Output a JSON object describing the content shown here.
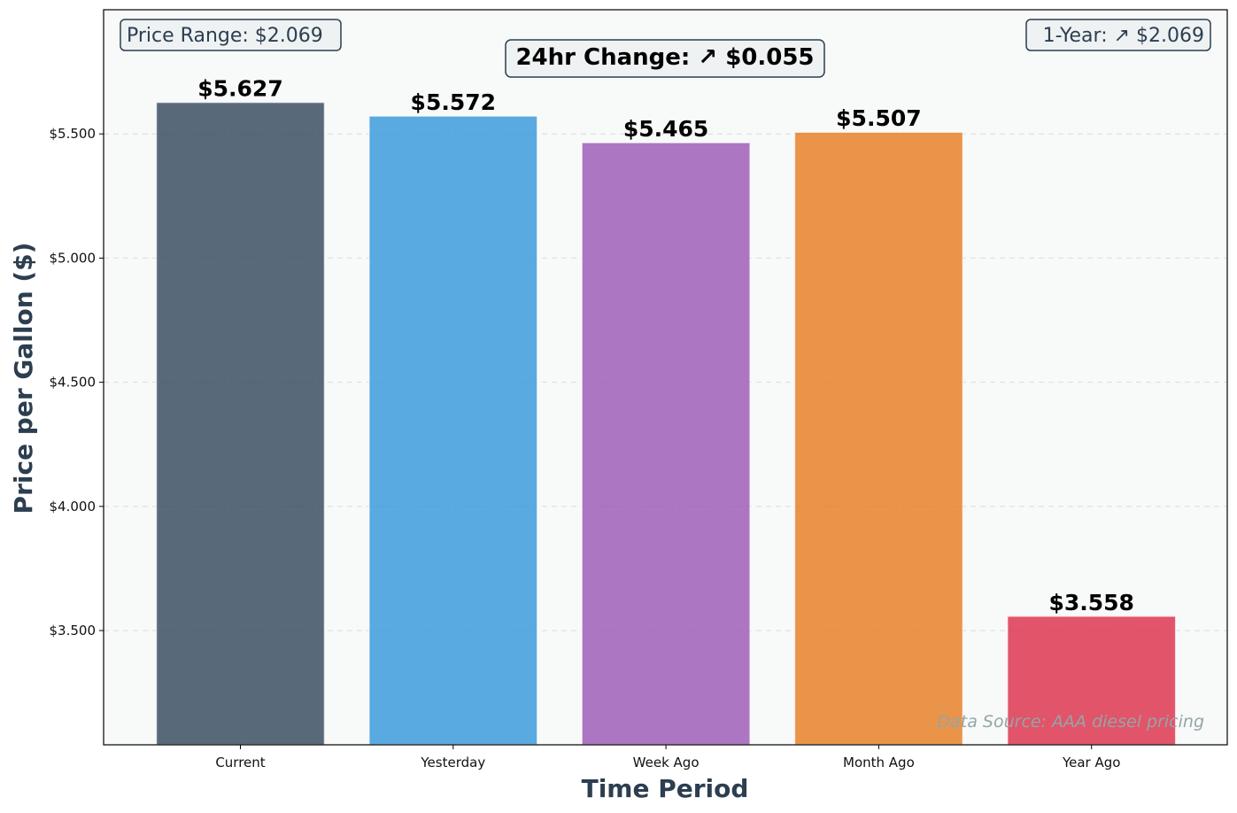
{
  "chart_data": {
    "type": "bar",
    "categories": [
      "Current",
      "Yesterday",
      "Week Ago",
      "Month Ago",
      "Year Ago"
    ],
    "values": [
      5.627,
      5.572,
      5.465,
      5.507,
      3.558
    ],
    "value_labels": [
      "$5.627",
      "$5.572",
      "$5.465",
      "$5.507",
      "$3.558"
    ],
    "colors": [
      "#34495e",
      "#3498db",
      "#9b59b6",
      "#e67e22",
      "#dc2f4a"
    ],
    "xlabel": "Time Period",
    "ylabel": "Price per Gallon ($)",
    "ylim": [
      3.04,
      6.0
    ],
    "yticks": [
      3.5,
      4.0,
      4.5,
      5.0,
      5.5
    ],
    "ytick_labels": [
      "$3.500",
      "$4.000",
      "$4.500",
      "$5.000",
      "$5.500"
    ],
    "grid": "horizontal dashed",
    "annotations": {
      "price_range": "Price Range: $2.069",
      "change_24hr": "24hr Change: ↗ $0.055",
      "one_year": "1-Year: ↗ $2.069",
      "source": "Data Source: AAA diesel pricing"
    }
  }
}
